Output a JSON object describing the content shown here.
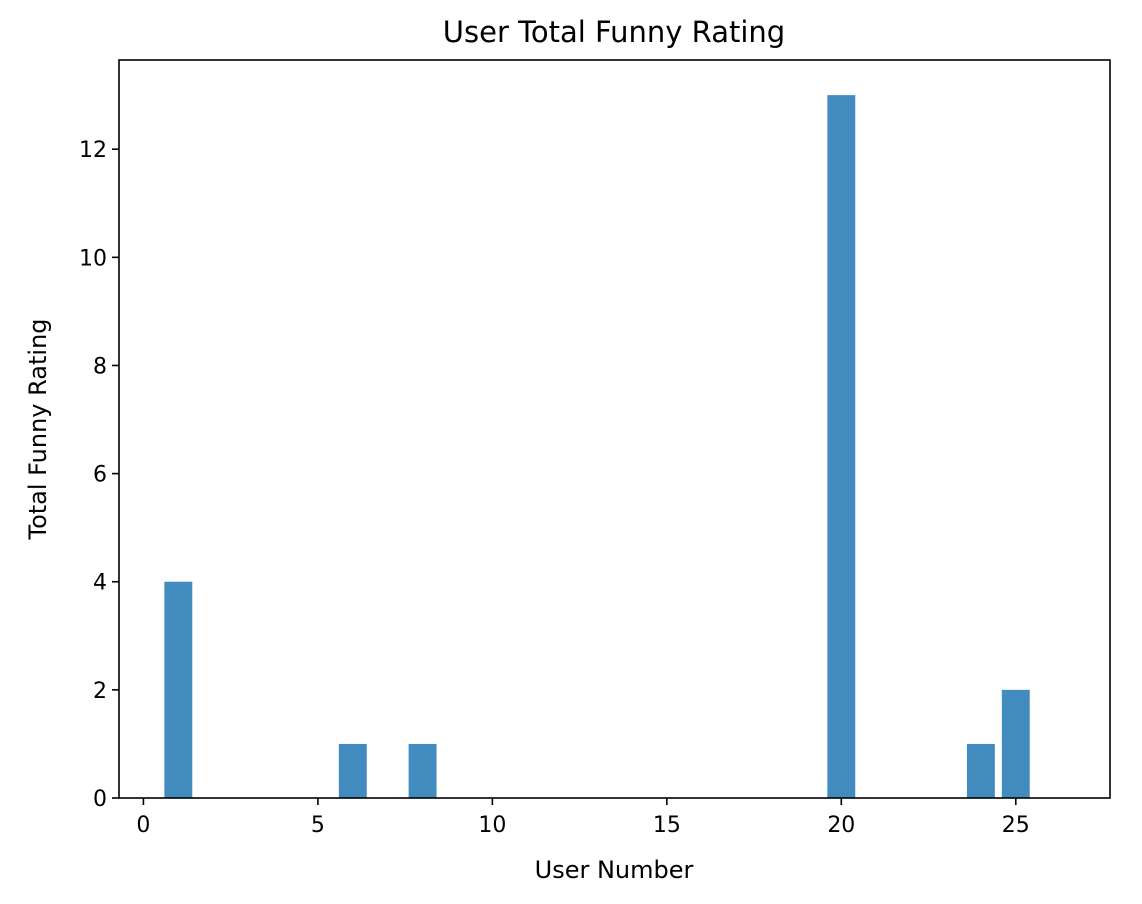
{
  "chart_data": {
    "type": "bar",
    "title": "User Total Funny Rating",
    "xlabel": "User Number",
    "ylabel": "Total Funny Rating",
    "x": [
      1,
      6,
      8,
      20,
      24,
      25
    ],
    "values": [
      4,
      1,
      1,
      13,
      1,
      2
    ],
    "bar_width": 0.8,
    "xlim": [
      -0.7,
      27.7
    ],
    "ylim": [
      0,
      13.65
    ],
    "xticks": [
      0,
      5,
      10,
      15,
      20,
      25
    ],
    "yticks": [
      0,
      2,
      4,
      6,
      8,
      10,
      12
    ],
    "grid": false,
    "bar_color": "#428bbf"
  }
}
